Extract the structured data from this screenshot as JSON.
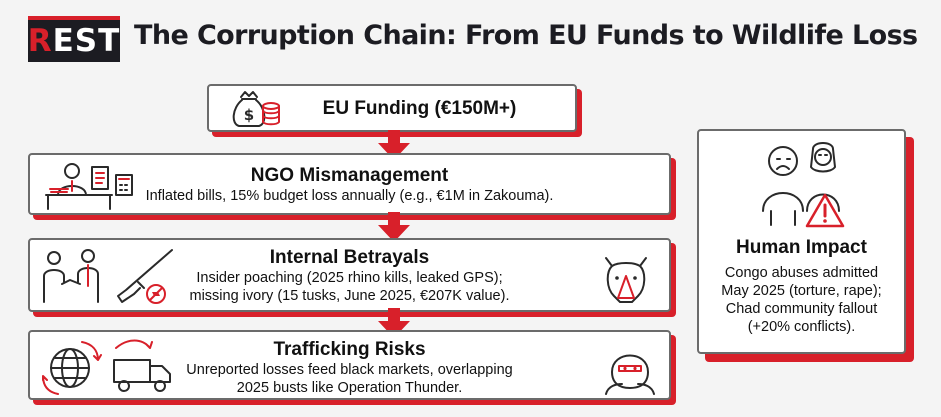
{
  "logo": {
    "first_letter": "R",
    "rest": "EST"
  },
  "title": "The Corruption Chain: From EU Funds to Wildlife Loss",
  "chain": {
    "funding": {
      "title": "EU Funding (€150M+)"
    },
    "ngo": {
      "title": "NGO Mismanagement",
      "text": "Inflated bills, 15% budget loss annually (e.g., €1M in Zakouma)."
    },
    "betrayals": {
      "title": "Internal Betrayals",
      "line1": "Insider poaching (2025 rhino kills, leaked GPS);",
      "line2": "missing ivory (15 tusks, June 2025, €207K value)."
    },
    "trafficking": {
      "title": "Trafficking Risks",
      "line1": "Unreported losses feed black markets, overlapping",
      "line2": "2025 busts like Operation Thunder."
    }
  },
  "impact": {
    "title": "Human Impact",
    "line1": "Congo abuses admitted",
    "line2": "May 2025 (torture, rape);",
    "line3": "Chad community fallout",
    "line4": "(+20% conflicts)."
  },
  "colors": {
    "accent": "#d8202a",
    "dark": "#1c1c22",
    "border": "#6b6b6b"
  },
  "icons": [
    "money-bag-coins-icon",
    "office-worker-icon",
    "handshake-icon",
    "rifle-icon",
    "rhino-icon",
    "globe-icon",
    "delivery-truck-icon",
    "hooded-figure-icon",
    "distressed-people-icon",
    "warning-icon"
  ]
}
